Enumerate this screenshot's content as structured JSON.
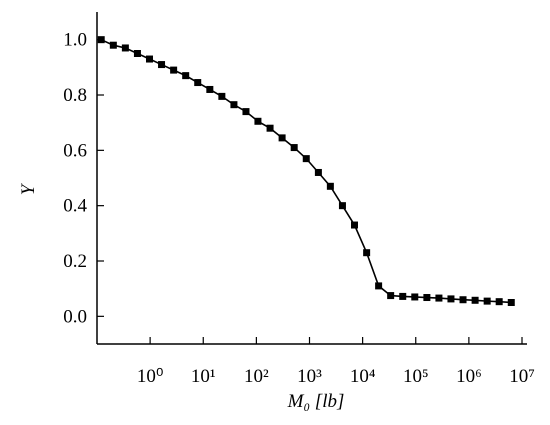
{
  "chart_data": {
    "type": "line",
    "x_label": "M₀ [lb]",
    "y_label": "Y",
    "x": [
      0.12,
      0.203,
      0.342,
      0.577,
      0.973,
      1.64,
      2.77,
      4.67,
      7.87,
      13.3,
      22.4,
      37.8,
      63.7,
      107,
      181,
      305,
      515,
      869,
      1470,
      2470,
      4170,
      7030,
      11900,
      20000,
      33700,
      56900,
      95900,
      162000,
      273000,
      460000,
      776000,
      1310000,
      2210000,
      3720000,
      6280000
    ],
    "series": [
      {
        "color": "#000000",
        "values": [
          1.0,
          0.98,
          0.97,
          0.95,
          0.93,
          0.91,
          0.89,
          0.87,
          0.845,
          0.82,
          0.795,
          0.765,
          0.74,
          0.705,
          0.68,
          0.645,
          0.61,
          0.57,
          0.52,
          0.47,
          0.4,
          0.33,
          0.23,
          0.11,
          0.075,
          0.072,
          0.07,
          0.068,
          0.066,
          0.063,
          0.06,
          0.058,
          0.055,
          0.053,
          0.05
        ]
      }
    ],
    "xscale": "log",
    "xlim": [
      0.1,
      10000000
    ],
    "xticks": [
      {
        "value": 1,
        "label": "10⁰"
      },
      {
        "value": 10,
        "label": "10¹"
      },
      {
        "value": 100,
        "label": "10²"
      },
      {
        "value": 1000,
        "label": "10³"
      },
      {
        "value": 10000,
        "label": "10⁴"
      },
      {
        "value": 100000,
        "label": "10⁵"
      },
      {
        "value": 1000000,
        "label": "10⁶"
      },
      {
        "value": 10000000,
        "label": "10⁷"
      }
    ],
    "ylim": [
      -0.1,
      1.1
    ],
    "yticks": [
      {
        "value": 0,
        "label": "0.0"
      },
      0.2,
      0.4,
      0.6,
      0.8,
      {
        "value": 1,
        "label": "1.0"
      }
    ],
    "marker": "square"
  }
}
